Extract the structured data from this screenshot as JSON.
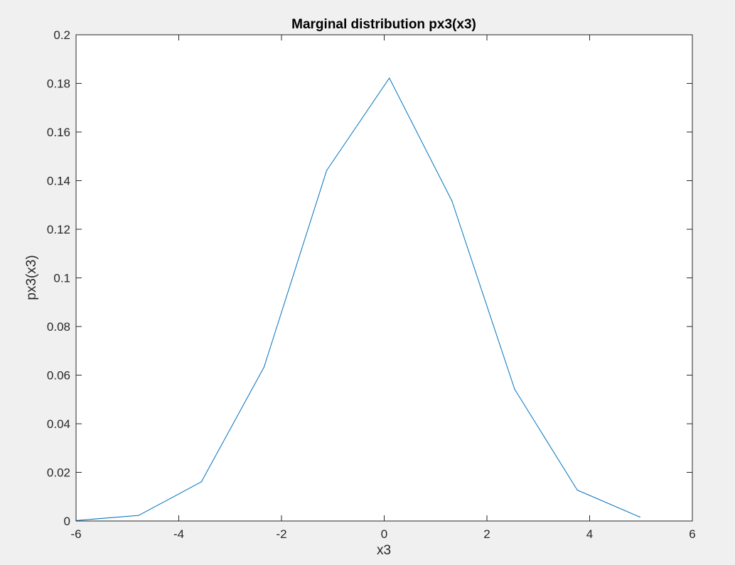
{
  "chart_data": {
    "type": "line",
    "title": "Marginal distribution px3(x3)",
    "xlabel": "x3",
    "ylabel": "px3(x3)",
    "xlim": [
      -6,
      6
    ],
    "ylim": [
      0,
      0.2
    ],
    "xticks": [
      -6,
      -4,
      -2,
      0,
      2,
      4,
      6
    ],
    "xtick_labels": [
      "-6",
      "-4",
      "-2",
      "0",
      "2",
      "4",
      "6"
    ],
    "yticks": [
      0,
      0.02,
      0.04,
      0.06,
      0.08,
      0.1,
      0.12,
      0.14,
      0.16,
      0.18,
      0.2
    ],
    "ytick_labels": [
      "0",
      "0.02",
      "0.04",
      "0.06",
      "0.08",
      "0.1",
      "0.12",
      "0.14",
      "0.16",
      "0.18",
      "0.2"
    ],
    "grid": false,
    "series": [
      {
        "x": [
          -6.0,
          -4.78,
          -3.56,
          -2.34,
          -1.12,
          0.1,
          1.32,
          2.54,
          3.76,
          4.98
        ],
        "y": [
          0.0002,
          0.0023,
          0.0161,
          0.0633,
          0.1442,
          0.1822,
          0.1316,
          0.0542,
          0.0127,
          0.0016
        ],
        "color": "#0072bd"
      }
    ]
  },
  "colors": {
    "figure_background": "#f0f0f0",
    "axes_background": "#ffffff",
    "axis_color": "#262626",
    "line_color": "#0072bd"
  }
}
